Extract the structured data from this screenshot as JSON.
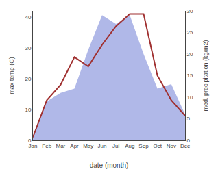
{
  "chart_data": {
    "type": "line",
    "categories": [
      "Jan",
      "Feb",
      "Mar",
      "Apr",
      "May",
      "Jun",
      "Jul",
      "Aug",
      "Sep",
      "Oct",
      "Nov",
      "Dec"
    ],
    "series": [
      {
        "type": "area",
        "color": "#b0b8e8",
        "axis": "y2",
        "values": [
          1,
          9,
          11,
          12,
          21,
          29,
          27,
          29,
          20,
          12,
          13,
          6
        ]
      },
      {
        "type": "line",
        "color": "#a03030",
        "values": [
          1,
          13,
          18,
          27,
          24,
          31,
          37,
          41,
          41,
          21,
          13,
          8
        ]
      }
    ],
    "xlabel": "date (month)",
    "ylabel": "max temp (C)",
    "y2label": "med. precipitation (kg/m2)",
    "ylim": [
      0,
      42
    ],
    "yticks": [
      0,
      10,
      20,
      30,
      40
    ],
    "y2lim": [
      0,
      30
    ],
    "y2ticks": [
      0,
      5,
      10,
      15,
      20,
      25,
      30
    ],
    "grid": false
  }
}
